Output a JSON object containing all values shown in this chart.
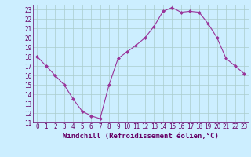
{
  "x": [
    0,
    1,
    2,
    3,
    4,
    5,
    6,
    7,
    8,
    9,
    10,
    11,
    12,
    13,
    14,
    15,
    16,
    17,
    18,
    19,
    20,
    21,
    22,
    23
  ],
  "y": [
    18.0,
    17.0,
    16.0,
    15.0,
    13.5,
    12.2,
    11.7,
    11.4,
    15.0,
    17.8,
    18.5,
    19.2,
    20.0,
    21.2,
    22.8,
    23.2,
    22.7,
    22.8,
    22.7,
    21.5,
    20.0,
    17.8,
    17.0,
    16.2
  ],
  "line_color": "#993399",
  "marker": "D",
  "markersize": 2.0,
  "linewidth": 0.8,
  "xlabel": "Windchill (Refroidissement éolien,°C)",
  "ylabel": "",
  "xlim": [
    -0.5,
    23.5
  ],
  "ylim": [
    11,
    23.5
  ],
  "yticks": [
    11,
    12,
    13,
    14,
    15,
    16,
    17,
    18,
    19,
    20,
    21,
    22,
    23
  ],
  "xticks": [
    0,
    1,
    2,
    3,
    4,
    5,
    6,
    7,
    8,
    9,
    10,
    11,
    12,
    13,
    14,
    15,
    16,
    17,
    18,
    19,
    20,
    21,
    22,
    23
  ],
  "bg_color": "#cceeff",
  "plot_bg_color": "#cceeff",
  "grid_color": "#aacccc",
  "text_color": "#660066",
  "tick_fontsize": 5.5,
  "xlabel_fontsize": 6.5
}
